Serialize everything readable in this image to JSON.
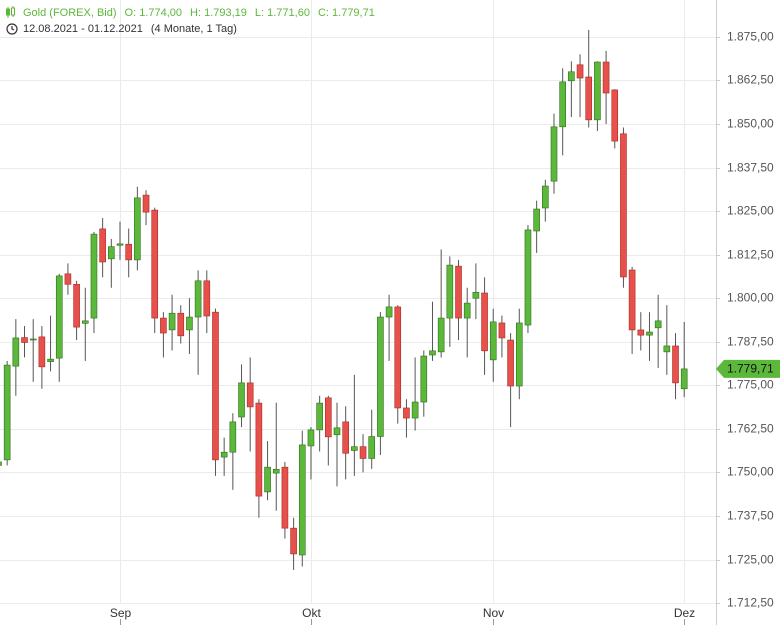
{
  "chart_data": {
    "type": "candlestick",
    "header": {
      "instrument": "Gold (FOREX, Bid)",
      "open_text": "O: 1.774,00",
      "high_text": "H: 1.793,19",
      "low_text": "L: 1.771,60",
      "close_text": "C: 1.779,71",
      "period": "12.08.2021 - 01.12.2021",
      "duration": "(4 Monate, 1 Tag)"
    },
    "categories": [
      null,
      null,
      null,
      null,
      null,
      null,
      null,
      null,
      null,
      null,
      null,
      null,
      null,
      null,
      "Sep",
      null,
      null,
      null,
      null,
      null,
      null,
      null,
      null,
      null,
      null,
      null,
      null,
      null,
      null,
      null,
      null,
      null,
      null,
      null,
      null,
      null,
      "Okt",
      null,
      null,
      null,
      null,
      null,
      null,
      null,
      null,
      null,
      null,
      null,
      null,
      null,
      null,
      null,
      null,
      null,
      null,
      null,
      null,
      "Nov",
      null,
      null,
      null,
      null,
      null,
      null,
      null,
      null,
      null,
      null,
      null,
      null,
      null,
      null,
      null,
      null,
      null,
      null,
      null,
      null,
      null,
      "Dez"
    ],
    "open": [
      1752,
      1753.6,
      1780.5,
      1788.7,
      1788,
      1788.9,
      1781.8,
      1782.8,
      1807,
      1804,
      1792.8,
      1794.3,
      1819.9,
      1811.3,
      1815.2,
      1815.5,
      1811,
      1829.6,
      1825.3,
      1794.3,
      1790.9,
      1795.7,
      1790.9,
      1794.6,
      1805,
      1796,
      1754.4,
      1755.8,
      1765.9,
      1775.7,
      1769.9,
      1744.4,
      1749.8,
      1751.5,
      1734,
      1726.3,
      1757.6,
      1762.2,
      1771.4,
      1760.8,
      1764.5,
      1756.3,
      1757.4,
      1754,
      1760.3,
      1794.6,
      1797.5,
      1768.5,
      1765.6,
      1770.2,
      1783.7,
      1784.6,
      1794.3,
      1809.2,
      1794.3,
      1800,
      1801.5,
      1782.3,
      1792.9,
      1788,
      1774.8,
      1792.3,
      1819.3,
      1825.9,
      1833.6,
      1849.2,
      1862.4,
      1867,
      1863.5,
      1851.2,
      1867.8,
      1859.8,
      1847.2,
      1808.1,
      1790.9,
      1789.4,
      1791.5,
      1784.6,
      1786.3,
      1774
    ],
    "high": [
      1755,
      1782,
      1794,
      1792,
      1794,
      1792,
      1795,
      1807,
      1810,
      1805,
      1803,
      1819,
      1823,
      1817,
      1822,
      1820,
      1832,
      1831,
      1826,
      1796,
      1801,
      1798,
      1800,
      1808,
      1808,
      1797,
      1760,
      1767,
      1781,
      1783,
      1771,
      1759,
      1770,
      1753,
      1737,
      1762,
      1763,
      1772,
      1772,
      1770,
      1769,
      1778,
      1761,
      1768,
      1796,
      1801,
      1798,
      1771,
      1783,
      1785,
      1799,
      1814,
      1812,
      1811,
      1803,
      1810,
      1806,
      1797,
      1795,
      1790,
      1797,
      1821,
      1828,
      1834,
      1853,
      1866,
      1868,
      1870,
      1877,
      1868,
      1871,
      1860,
      1849,
      1809,
      1796,
      1796,
      1801,
      1798,
      1790,
      1793.19
    ],
    "low": [
      1750,
      1752,
      1772,
      1783,
      1776,
      1774,
      1779,
      1776,
      1801,
      1788,
      1782,
      1790,
      1806,
      1803,
      1811,
      1806,
      1808,
      1821,
      1790,
      1783,
      1785,
      1787,
      1784,
      1778,
      1790,
      1749,
      1749,
      1745,
      1763,
      1756,
      1737,
      1742,
      1739,
      1731,
      1722,
      1723,
      1748,
      1756,
      1752,
      1746,
      1748,
      1749,
      1750,
      1751,
      1755,
      1782,
      1764,
      1760,
      1762,
      1766,
      1782,
      1783,
      1786,
      1788,
      1783,
      1794,
      1778,
      1776,
      1783,
      1763,
      1771,
      1790,
      1813,
      1822,
      1830,
      1841,
      1852,
      1852,
      1849,
      1848,
      1850,
      1843,
      1803,
      1784,
      1785,
      1782,
      1780,
      1778,
      1771,
      1771.6
    ],
    "close": [
      1753,
      1780.8,
      1788.6,
      1787.3,
      1788.3,
      1780.3,
      1782.5,
      1806.4,
      1804,
      1791.7,
      1793.5,
      1818.4,
      1810.4,
      1814.8,
      1815.6,
      1811,
      1828.8,
      1824.7,
      1794.3,
      1790,
      1795.7,
      1789.2,
      1794.6,
      1805,
      1794.9,
      1753.6,
      1755.8,
      1764.5,
      1775.7,
      1768.8,
      1743.2,
      1751.5,
      1750.9,
      1734,
      1726.6,
      1757.9,
      1762.2,
      1769.9,
      1760.2,
      1762.8,
      1755.5,
      1757.4,
      1754,
      1760.3,
      1794.6,
      1797.5,
      1768.5,
      1765.6,
      1770.2,
      1783.4,
      1784.9,
      1794.3,
      1809.5,
      1794.3,
      1798.6,
      1801.7,
      1784.9,
      1793.2,
      1788.6,
      1774.8,
      1792.9,
      1819.6,
      1825.6,
      1832.2,
      1849.2,
      1862.1,
      1865,
      1863.2,
      1851.2,
      1867.8,
      1858.9,
      1845.1,
      1806.1,
      1790.9,
      1789.4,
      1790.3,
      1793.5,
      1786.3,
      1775.7,
      1779.71
    ],
    "up_color": "#5cb83a",
    "down_color": "#e8514b",
    "last_label": "1.779,71",
    "ylim": [
      1706.2,
      1885.6
    ],
    "yticks": [
      {
        "value": 1712.5,
        "label": "1.712,50"
      },
      {
        "value": 1725,
        "label": "1.725,00"
      },
      {
        "value": 1737.5,
        "label": "1.737,50"
      },
      {
        "value": 1750,
        "label": "1.750,00"
      },
      {
        "value": 1762.5,
        "label": "1.762,50"
      },
      {
        "value": 1775,
        "label": "1.775,00"
      },
      {
        "value": 1787.5,
        "label": "1.787,50"
      },
      {
        "value": 1800,
        "label": "1.800,00"
      },
      {
        "value": 1812.5,
        "label": "1.812,50"
      },
      {
        "value": 1825,
        "label": "1.825,00"
      },
      {
        "value": 1837.5,
        "label": "1.837,50"
      },
      {
        "value": 1850,
        "label": "1.850,00"
      },
      {
        "value": 1862.5,
        "label": "1.862,50"
      },
      {
        "value": 1875,
        "label": "1.875,00"
      }
    ],
    "grid": true
  }
}
